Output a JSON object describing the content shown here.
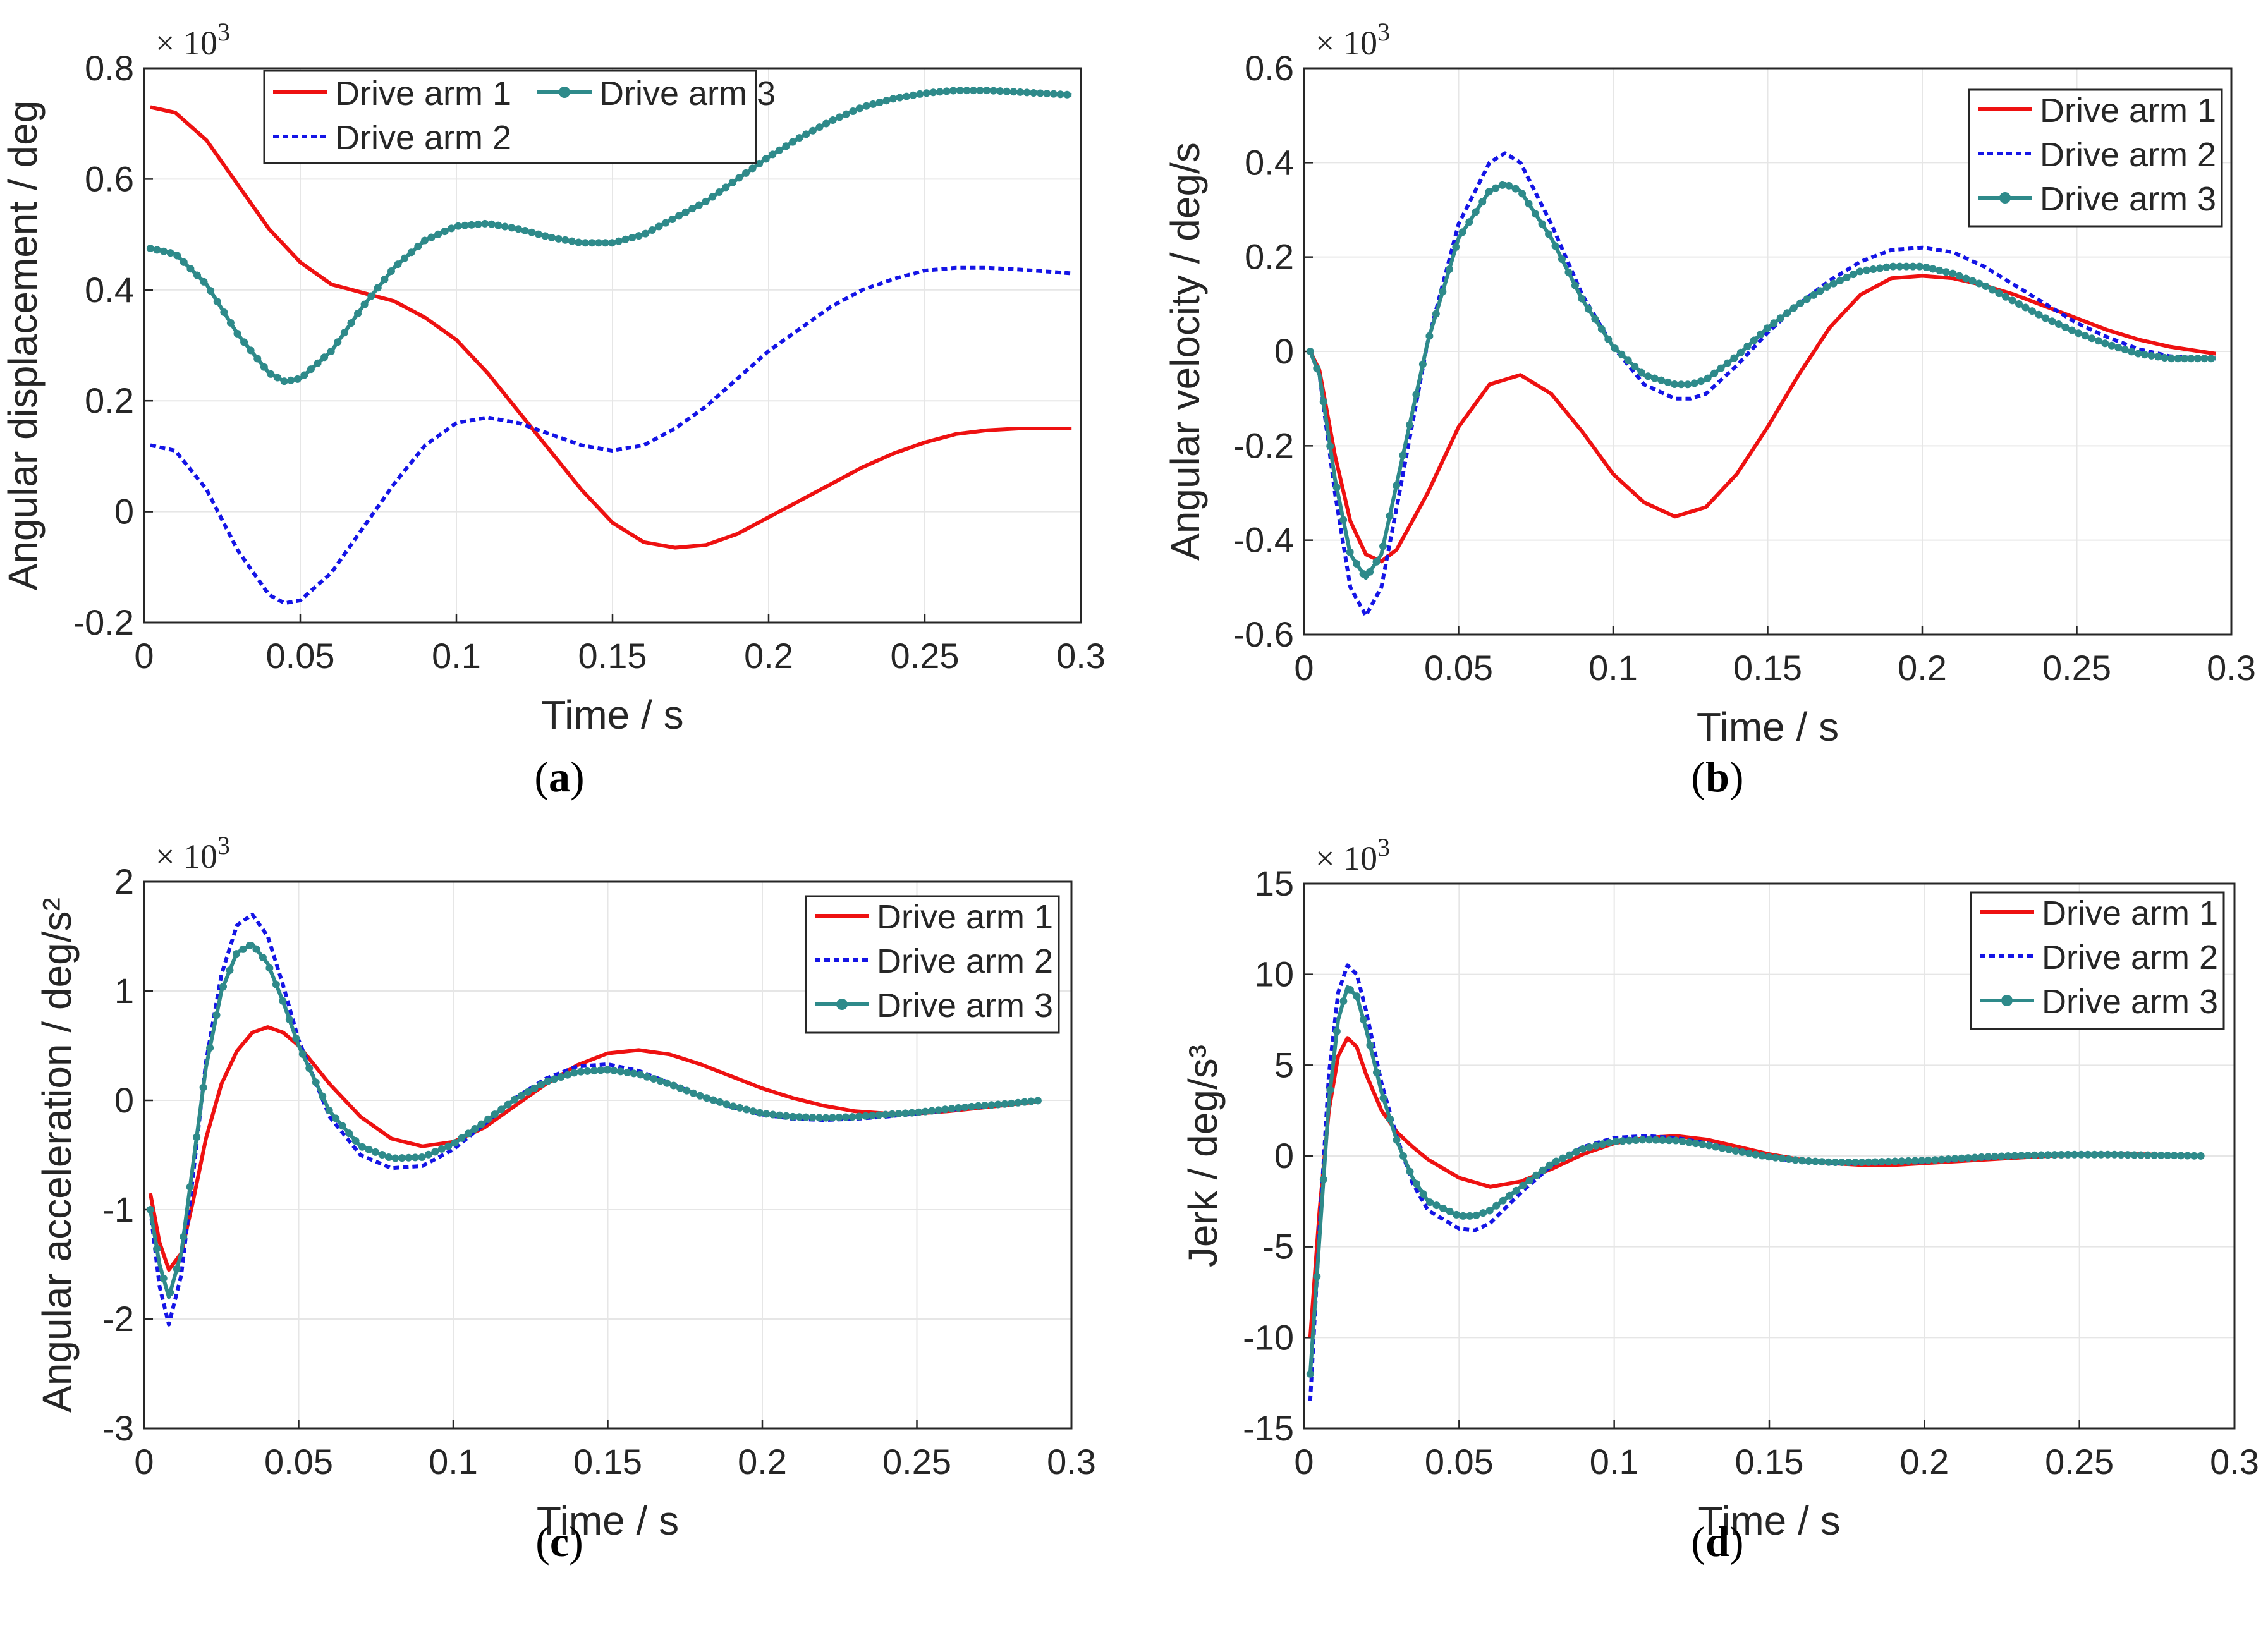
{
  "figure": {
    "series_colors": {
      "Drive arm 1": "#ee1111",
      "Drive arm 2": "#1414e6",
      "Drive arm 3": "#2e8a8a"
    }
  },
  "chart_data": [
    {
      "type": "line",
      "panel_label": "(a)",
      "xlabel": "Time / s",
      "ylabel": "Angular displacement / deg",
      "multiplier": "× 10^3",
      "xlim": [
        0,
        0.3
      ],
      "ylim": [
        -0.2,
        0.8
      ],
      "xticks": [
        "0",
        "0.05",
        "0.1",
        "0.15",
        "0.2",
        "0.25",
        "0.3"
      ],
      "yticks": [
        "-0.2",
        "0",
        "0.2",
        "0.4",
        "0.6",
        "0.8"
      ],
      "legend": "top-center",
      "legend_layout": "two-column",
      "grid": true,
      "series": [
        {
          "name": "Drive arm 1",
          "x": [
            0.002,
            0.01,
            0.02,
            0.03,
            0.04,
            0.05,
            0.06,
            0.07,
            0.08,
            0.09,
            0.1,
            0.11,
            0.12,
            0.13,
            0.14,
            0.15,
            0.16,
            0.17,
            0.18,
            0.19,
            0.2,
            0.21,
            0.22,
            0.23,
            0.24,
            0.25,
            0.26,
            0.27,
            0.28,
            0.29,
            0.297
          ],
          "y": [
            0.73,
            0.72,
            0.67,
            0.59,
            0.51,
            0.45,
            0.41,
            0.395,
            0.38,
            0.35,
            0.31,
            0.25,
            0.18,
            0.11,
            0.04,
            -0.02,
            -0.055,
            -0.065,
            -0.06,
            -0.04,
            -0.01,
            0.02,
            0.05,
            0.08,
            0.105,
            0.125,
            0.14,
            0.147,
            0.15,
            0.15,
            0.15
          ]
        },
        {
          "name": "Drive arm 2",
          "x": [
            0.002,
            0.01,
            0.02,
            0.03,
            0.04,
            0.045,
            0.05,
            0.06,
            0.07,
            0.08,
            0.09,
            0.1,
            0.11,
            0.12,
            0.13,
            0.14,
            0.15,
            0.16,
            0.17,
            0.18,
            0.19,
            0.2,
            0.21,
            0.22,
            0.23,
            0.24,
            0.25,
            0.26,
            0.27,
            0.28,
            0.29,
            0.297
          ],
          "y": [
            0.12,
            0.11,
            0.04,
            -0.07,
            -0.15,
            -0.165,
            -0.16,
            -0.11,
            -0.03,
            0.05,
            0.12,
            0.16,
            0.17,
            0.16,
            0.14,
            0.12,
            0.11,
            0.12,
            0.15,
            0.19,
            0.24,
            0.29,
            0.33,
            0.37,
            0.4,
            0.42,
            0.435,
            0.44,
            0.44,
            0.437,
            0.433,
            0.43
          ]
        },
        {
          "name": "Drive arm 3",
          "x": [
            0.002,
            0.01,
            0.02,
            0.03,
            0.04,
            0.045,
            0.05,
            0.06,
            0.07,
            0.08,
            0.09,
            0.1,
            0.11,
            0.12,
            0.13,
            0.14,
            0.15,
            0.16,
            0.17,
            0.18,
            0.19,
            0.2,
            0.21,
            0.22,
            0.23,
            0.24,
            0.25,
            0.26,
            0.27,
            0.28,
            0.29,
            0.297
          ],
          "y": [
            0.475,
            0.465,
            0.41,
            0.32,
            0.25,
            0.235,
            0.24,
            0.29,
            0.37,
            0.44,
            0.49,
            0.515,
            0.52,
            0.51,
            0.495,
            0.485,
            0.485,
            0.5,
            0.53,
            0.56,
            0.6,
            0.64,
            0.675,
            0.705,
            0.73,
            0.745,
            0.755,
            0.76,
            0.76,
            0.757,
            0.754,
            0.752
          ]
        }
      ]
    },
    {
      "type": "line",
      "panel_label": "(b)",
      "xlabel": "Time / s",
      "ylabel": "Angular velocity / deg/s",
      "multiplier": "× 10^3",
      "xlim": [
        0,
        0.3
      ],
      "ylim": [
        -0.6,
        0.6
      ],
      "xticks": [
        "0",
        "0.05",
        "0.1",
        "0.15",
        "0.2",
        "0.25",
        "0.3"
      ],
      "yticks": [
        "-0.6",
        "-0.4",
        "-0.2",
        "0",
        "0.2",
        "0.4",
        "0.6"
      ],
      "legend": "top-right",
      "legend_layout": "one-column",
      "grid": true,
      "series": [
        {
          "name": "Drive arm 1",
          "x": [
            0.002,
            0.005,
            0.01,
            0.015,
            0.02,
            0.025,
            0.03,
            0.04,
            0.05,
            0.06,
            0.07,
            0.08,
            0.09,
            0.1,
            0.11,
            0.12,
            0.13,
            0.14,
            0.15,
            0.16,
            0.17,
            0.18,
            0.19,
            0.2,
            0.21,
            0.22,
            0.23,
            0.24,
            0.25,
            0.26,
            0.27,
            0.28,
            0.29,
            0.295
          ],
          "y": [
            0,
            -0.04,
            -0.22,
            -0.36,
            -0.43,
            -0.445,
            -0.42,
            -0.3,
            -0.16,
            -0.07,
            -0.05,
            -0.09,
            -0.17,
            -0.26,
            -0.32,
            -0.35,
            -0.33,
            -0.26,
            -0.16,
            -0.05,
            0.05,
            0.12,
            0.155,
            0.16,
            0.155,
            0.14,
            0.12,
            0.095,
            0.07,
            0.045,
            0.025,
            0.01,
            0,
            -0.005
          ]
        },
        {
          "name": "Drive arm 2",
          "x": [
            0.002,
            0.005,
            0.01,
            0.015,
            0.02,
            0.025,
            0.03,
            0.04,
            0.05,
            0.06,
            0.065,
            0.07,
            0.08,
            0.09,
            0.1,
            0.11,
            0.12,
            0.125,
            0.13,
            0.14,
            0.15,
            0.16,
            0.17,
            0.18,
            0.19,
            0.2,
            0.21,
            0.22,
            0.23,
            0.24,
            0.25,
            0.26,
            0.27,
            0.28,
            0.29,
            0.295
          ],
          "y": [
            0,
            -0.05,
            -0.3,
            -0.5,
            -0.56,
            -0.5,
            -0.33,
            0.02,
            0.27,
            0.4,
            0.42,
            0.4,
            0.27,
            0.12,
            0.01,
            -0.07,
            -0.1,
            -0.1,
            -0.09,
            -0.03,
            0.04,
            0.1,
            0.15,
            0.19,
            0.215,
            0.22,
            0.21,
            0.18,
            0.14,
            0.1,
            0.06,
            0.03,
            0.005,
            -0.01,
            -0.015,
            -0.015
          ]
        },
        {
          "name": "Drive arm 3",
          "x": [
            0.002,
            0.005,
            0.01,
            0.015,
            0.02,
            0.025,
            0.03,
            0.04,
            0.05,
            0.06,
            0.065,
            0.07,
            0.08,
            0.09,
            0.1,
            0.11,
            0.12,
            0.125,
            0.13,
            0.14,
            0.15,
            0.16,
            0.17,
            0.18,
            0.19,
            0.2,
            0.21,
            0.22,
            0.23,
            0.24,
            0.25,
            0.26,
            0.27,
            0.28,
            0.29,
            0.295
          ],
          "y": [
            0,
            -0.05,
            -0.27,
            -0.43,
            -0.48,
            -0.43,
            -0.28,
            0.02,
            0.24,
            0.34,
            0.355,
            0.34,
            0.24,
            0.11,
            0.01,
            -0.05,
            -0.07,
            -0.07,
            -0.06,
            -0.01,
            0.05,
            0.1,
            0.14,
            0.17,
            0.18,
            0.18,
            0.165,
            0.14,
            0.105,
            0.07,
            0.04,
            0.015,
            -0.005,
            -0.015,
            -0.015,
            -0.015
          ]
        }
      ]
    },
    {
      "type": "line",
      "panel_label": "(c)",
      "xlabel": "Time / s",
      "ylabel": "Angular acceleration / deg/s²",
      "multiplier": "× 10^3",
      "xlim": [
        0,
        0.3
      ],
      "ylim": [
        -3,
        2
      ],
      "xticks": [
        "0",
        "0.05",
        "0.1",
        "0.15",
        "0.2",
        "0.25",
        "0.3"
      ],
      "yticks": [
        "-3",
        "-2",
        "-1",
        "0",
        "1",
        "2"
      ],
      "legend": "top-right",
      "legend_layout": "one-column",
      "grid": true,
      "series": [
        {
          "name": "Drive arm 1",
          "x": [
            0.002,
            0.005,
            0.008,
            0.012,
            0.016,
            0.02,
            0.025,
            0.03,
            0.035,
            0.04,
            0.045,
            0.05,
            0.06,
            0.07,
            0.08,
            0.09,
            0.1,
            0.11,
            0.12,
            0.13,
            0.14,
            0.15,
            0.16,
            0.17,
            0.18,
            0.19,
            0.2,
            0.21,
            0.22,
            0.23,
            0.24,
            0.25,
            0.26,
            0.27,
            0.28,
            0.29
          ],
          "y": [
            -0.85,
            -1.3,
            -1.55,
            -1.4,
            -0.9,
            -0.35,
            0.15,
            0.45,
            0.62,
            0.67,
            0.62,
            0.5,
            0.15,
            -0.15,
            -0.35,
            -0.42,
            -0.38,
            -0.25,
            -0.05,
            0.15,
            0.32,
            0.43,
            0.46,
            0.42,
            0.33,
            0.22,
            0.11,
            0.02,
            -0.05,
            -0.1,
            -0.12,
            -0.12,
            -0.1,
            -0.07,
            -0.04,
            -0.01
          ]
        },
        {
          "name": "Drive arm 2",
          "x": [
            0.002,
            0.005,
            0.008,
            0.012,
            0.016,
            0.02,
            0.025,
            0.03,
            0.035,
            0.04,
            0.045,
            0.05,
            0.06,
            0.07,
            0.08,
            0.09,
            0.1,
            0.11,
            0.12,
            0.13,
            0.14,
            0.15,
            0.16,
            0.17,
            0.18,
            0.19,
            0.2,
            0.21,
            0.22,
            0.23,
            0.24,
            0.25,
            0.26,
            0.27,
            0.28,
            0.29
          ],
          "y": [
            -1,
            -1.7,
            -2.05,
            -1.6,
            -0.65,
            0.35,
            1.15,
            1.6,
            1.7,
            1.5,
            1.05,
            0.55,
            -0.15,
            -0.5,
            -0.62,
            -0.6,
            -0.45,
            -0.22,
            0.02,
            0.2,
            0.31,
            0.33,
            0.27,
            0.16,
            0.04,
            -0.06,
            -0.13,
            -0.17,
            -0.18,
            -0.17,
            -0.15,
            -0.12,
            -0.09,
            -0.06,
            -0.03,
            0
          ]
        },
        {
          "name": "Drive arm 3",
          "x": [
            0.002,
            0.005,
            0.008,
            0.012,
            0.016,
            0.02,
            0.025,
            0.03,
            0.035,
            0.04,
            0.045,
            0.05,
            0.06,
            0.07,
            0.08,
            0.09,
            0.1,
            0.11,
            0.12,
            0.13,
            0.14,
            0.15,
            0.16,
            0.17,
            0.18,
            0.19,
            0.2,
            0.21,
            0.22,
            0.23,
            0.24,
            0.25,
            0.26,
            0.27,
            0.28,
            0.29
          ],
          "y": [
            -1,
            -1.5,
            -1.8,
            -1.4,
            -0.55,
            0.3,
            1,
            1.35,
            1.43,
            1.25,
            0.9,
            0.5,
            -0.1,
            -0.42,
            -0.53,
            -0.52,
            -0.4,
            -0.2,
            0.01,
            0.17,
            0.26,
            0.28,
            0.24,
            0.15,
            0.04,
            -0.05,
            -0.12,
            -0.15,
            -0.16,
            -0.15,
            -0.13,
            -0.11,
            -0.08,
            -0.05,
            -0.03,
            0
          ]
        }
      ]
    },
    {
      "type": "line",
      "panel_label": "(d)",
      "xlabel": "Time / s",
      "ylabel": "Jerk / deg/s³",
      "multiplier": "× 10^3",
      "xlim": [
        0,
        0.3
      ],
      "ylim": [
        -15,
        15
      ],
      "xticks": [
        "0",
        "0.05",
        "0.1",
        "0.15",
        "0.2",
        "0.25",
        "0.3"
      ],
      "yticks": [
        "-15",
        "-10",
        "-5",
        "0",
        "5",
        "10",
        "15"
      ],
      "legend": "top-right",
      "legend_layout": "one-column",
      "grid": true,
      "series": [
        {
          "name": "Drive arm 1",
          "x": [
            0.002,
            0.005,
            0.008,
            0.011,
            0.014,
            0.017,
            0.02,
            0.025,
            0.03,
            0.035,
            0.04,
            0.05,
            0.06,
            0.07,
            0.08,
            0.09,
            0.1,
            0.11,
            0.12,
            0.13,
            0.14,
            0.15,
            0.16,
            0.17,
            0.18,
            0.19,
            0.2,
            0.21,
            0.22,
            0.23,
            0.24,
            0.25,
            0.26,
            0.27,
            0.28,
            0.29
          ],
          "y": [
            -10,
            -3,
            2.5,
            5.5,
            6.5,
            6,
            4.5,
            2.5,
            1.3,
            0.5,
            -0.2,
            -1.2,
            -1.7,
            -1.4,
            -0.7,
            0.1,
            0.7,
            1,
            1.1,
            0.9,
            0.5,
            0.1,
            -0.2,
            -0.4,
            -0.5,
            -0.5,
            -0.4,
            -0.3,
            -0.2,
            -0.1,
            0,
            0.05,
            0.1,
            0.1,
            0.05,
            0
          ]
        },
        {
          "name": "Drive arm 2",
          "x": [
            0.002,
            0.005,
            0.008,
            0.011,
            0.014,
            0.017,
            0.02,
            0.025,
            0.03,
            0.035,
            0.04,
            0.05,
            0.055,
            0.06,
            0.07,
            0.08,
            0.09,
            0.1,
            0.11,
            0.12,
            0.13,
            0.14,
            0.15,
            0.16,
            0.17,
            0.18,
            0.19,
            0.2,
            0.21,
            0.22,
            0.23,
            0.24,
            0.25,
            0.26,
            0.27,
            0.28,
            0.29
          ],
          "y": [
            -13.5,
            -4,
            4.5,
            9,
            10.5,
            10,
            8,
            4,
            1,
            -1.5,
            -3,
            -4,
            -4.1,
            -3.7,
            -2,
            -0.5,
            0.5,
            1,
            1.1,
            1,
            0.7,
            0.3,
            -0.1,
            -0.3,
            -0.4,
            -0.4,
            -0.35,
            -0.3,
            -0.2,
            -0.1,
            0,
            0.05,
            0.1,
            0.1,
            0.05,
            0.03,
            0
          ]
        },
        {
          "name": "Drive arm 3",
          "x": [
            0.002,
            0.005,
            0.008,
            0.011,
            0.014,
            0.017,
            0.02,
            0.025,
            0.03,
            0.035,
            0.04,
            0.05,
            0.055,
            0.06,
            0.07,
            0.08,
            0.09,
            0.1,
            0.11,
            0.12,
            0.13,
            0.14,
            0.15,
            0.16,
            0.17,
            0.18,
            0.19,
            0.2,
            0.21,
            0.22,
            0.23,
            0.24,
            0.25,
            0.26,
            0.27,
            0.28,
            0.29
          ],
          "y": [
            -12,
            -4.5,
            3,
            7.5,
            9.3,
            8.8,
            7,
            3.5,
            0.8,
            -1.2,
            -2.5,
            -3.3,
            -3.3,
            -3,
            -1.7,
            -0.4,
            0.4,
            0.8,
            0.9,
            0.85,
            0.6,
            0.25,
            -0.05,
            -0.25,
            -0.35,
            -0.35,
            -0.3,
            -0.25,
            -0.15,
            -0.05,
            0.02,
            0.06,
            0.08,
            0.08,
            0.05,
            0.03,
            0
          ]
        }
      ]
    }
  ]
}
